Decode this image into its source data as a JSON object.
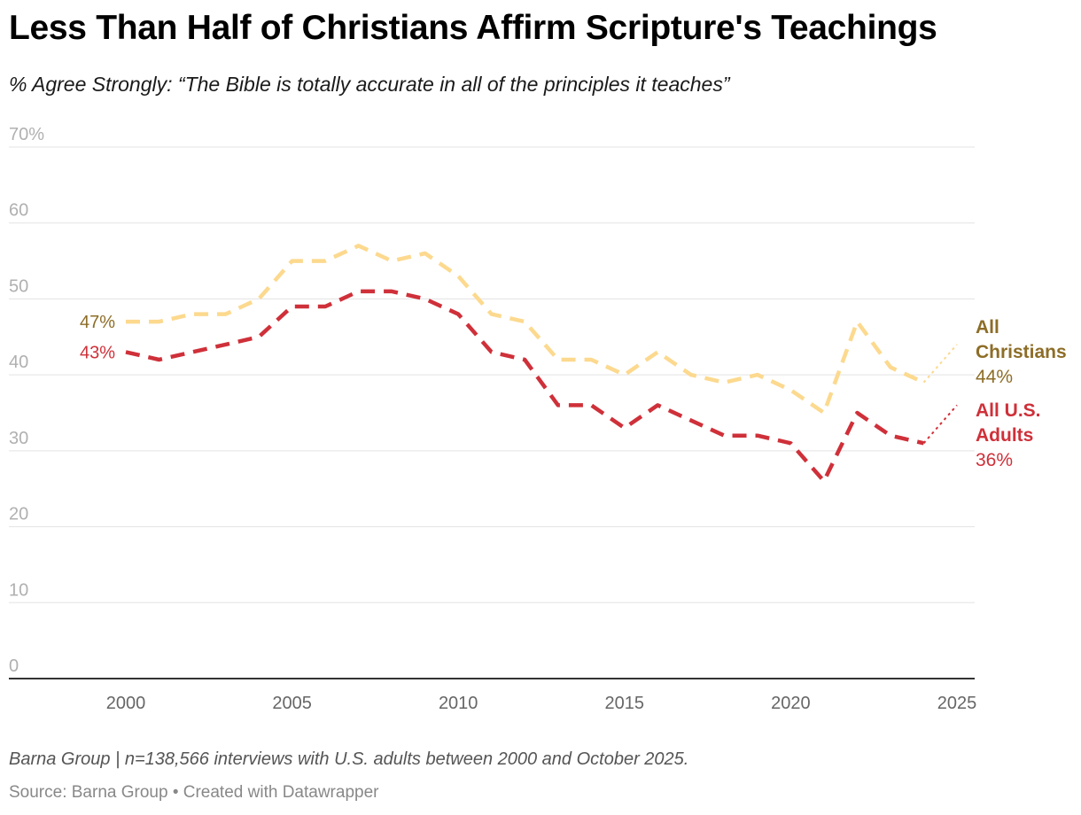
{
  "header": {
    "title": "Less Than Half of Christians Affirm Scripture's Teachings",
    "subtitle": "% Agree Strongly: “The Bible is totally accurate in all of the principles it teaches”"
  },
  "footer": {
    "notes": "Barna Group | n=138,566 interviews with U.S. adults between 2000 and October 2025.",
    "source": "Source: Barna Group • Created with Datawrapper"
  },
  "chart_data": {
    "type": "line",
    "x": [
      2000,
      2001,
      2002,
      2003,
      2004,
      2005,
      2006,
      2007,
      2008,
      2009,
      2010,
      2011,
      2012,
      2013,
      2014,
      2015,
      2016,
      2017,
      2018,
      2019,
      2020,
      2021,
      2022,
      2023,
      2024,
      2025
    ],
    "xticks": [
      2000,
      2005,
      2010,
      2015,
      2020,
      2025
    ],
    "xlim": [
      1997.5,
      2025.5
    ],
    "ylim": [
      0,
      70
    ],
    "yticks": [
      0,
      10,
      20,
      30,
      40,
      50,
      60,
      70
    ],
    "ytick_labels": [
      "0",
      "10",
      "20",
      "30",
      "40",
      "50",
      "60",
      "70%"
    ],
    "grid": true,
    "line_style": "dashed",
    "series": [
      {
        "name": "All Christians",
        "label_lines": [
          "All",
          "Christians"
        ],
        "start_label": "47%",
        "end_label": "44%",
        "color": "#fcd98e",
        "label_color": "#8d6d27",
        "values": [
          47,
          47,
          48,
          48,
          50,
          55,
          55,
          57,
          55,
          56,
          53,
          48,
          47,
          42,
          42,
          40,
          43,
          40,
          39,
          40,
          38,
          35,
          47,
          41,
          39,
          44
        ]
      },
      {
        "name": "All U.S. Adults",
        "label_lines": [
          "All U.S.",
          "Adults"
        ],
        "start_label": "43%",
        "end_label": "36%",
        "color": "#cf3039",
        "label_color": "#cf3039",
        "values": [
          43,
          42,
          43,
          44,
          45,
          49,
          49,
          51,
          51,
          50,
          48,
          43,
          42,
          36,
          36,
          33,
          36,
          34,
          32,
          32,
          31,
          26,
          35,
          32,
          31,
          36
        ]
      }
    ]
  }
}
